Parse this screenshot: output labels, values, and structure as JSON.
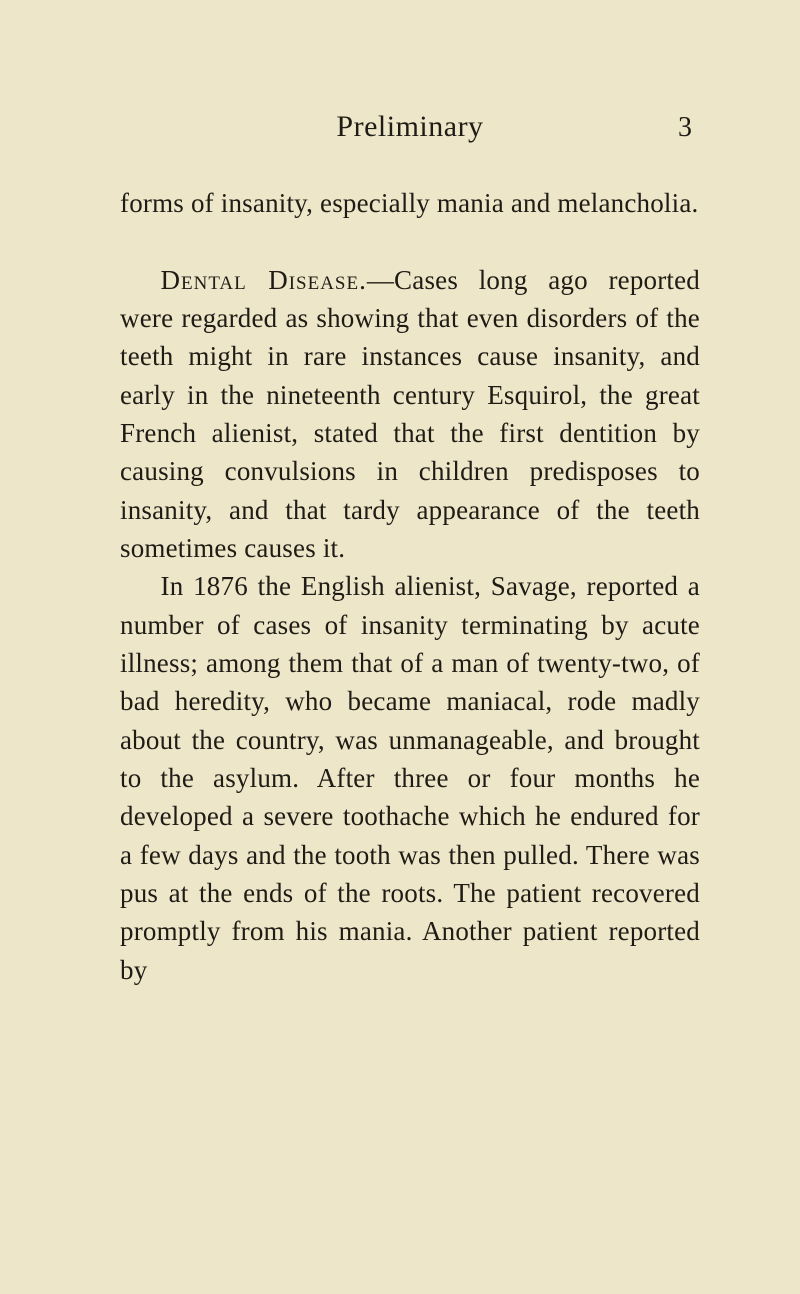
{
  "page": {
    "background_color": "#eee6c9",
    "text_color": "#1f1b15",
    "font_family": "Georgia, 'Times New Roman', serif",
    "body_fontsize": 27,
    "line_height": 1.42,
    "header_fontsize": 30,
    "pagenum_fontsize": 28
  },
  "header": {
    "title": "Preliminary",
    "page_number": "3"
  },
  "paragraphs": {
    "p1": "forms of insanity, especially mania and melancholia.",
    "p2_lead": "Dental Disease.",
    "p2_rest": "—Cases long ago reported were regarded as showing that even disorders of the teeth might in rare instances cause insanity, and early in the nineteenth century Esquirol, the great French alienist, stated that the first dentition by causing convulsions in chil­dren predisposes to insanity, and that tardy appearance of the teeth sometimes causes it.",
    "p3": "In 1876 the English alienist, Savage, reported a number of cases of insanity terminating by acute illness; among them that of a man of twenty-two, of bad heredity, who became maniacal, rode madly about the country, was unmanage­able, and brought to the asylum. After three or four months he developed a severe toothache which he endured for a few days and the tooth was then pulled. There was pus at the ends of the roots. The patient recovered promptly from his mania. Another patient reported by"
  }
}
